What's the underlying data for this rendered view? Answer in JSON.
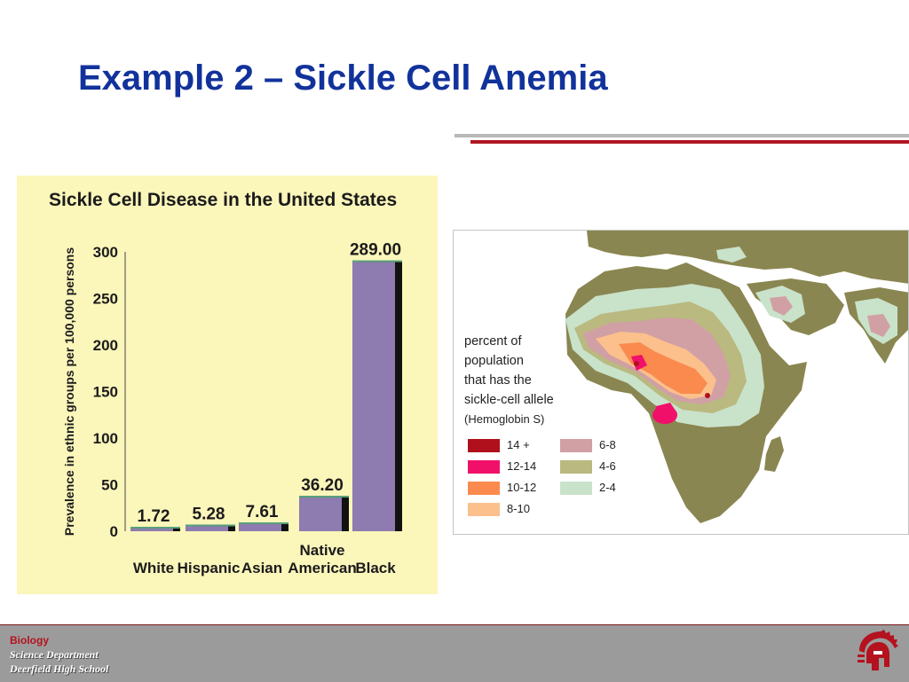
{
  "slide": {
    "title": "Example 2 – Sickle Cell Anemia"
  },
  "colors": {
    "title": "#12329b",
    "rule_gray": "#b8b8b8",
    "rule_red": "#b01722",
    "chart_background": "#fbf6ba",
    "bar_face": "#8e7bb0",
    "bar_shadow": "#111111",
    "footer": "#9b9b9b"
  },
  "chart_data": {
    "type": "bar",
    "title": "Sickle Cell Disease in the United States",
    "ylabel": "Prevalence in ethnic groups per 100,000 persons",
    "xlabel": "",
    "categories": [
      "White",
      "Hispanic",
      "Asian",
      "Native American",
      "Black"
    ],
    "category_lines": [
      [
        "White"
      ],
      [
        "Hispanic"
      ],
      [
        "Asian"
      ],
      [
        "Native",
        "American"
      ],
      [
        "Black"
      ]
    ],
    "values": [
      1.72,
      5.28,
      7.61,
      36.2,
      289.0
    ],
    "value_labels": [
      "1.72",
      "5.28",
      "7.61",
      "36.20",
      "289.00"
    ],
    "ylim": [
      0,
      300
    ],
    "yticks": [
      "0",
      "50",
      "100",
      "150",
      "200",
      "250",
      "300"
    ],
    "grid": false,
    "legend": "none"
  },
  "map": {
    "caption_lines": [
      "percent of",
      "population",
      "that has the",
      "sickle-cell allele",
      "(Hemoglobin S)"
    ],
    "legend": [
      {
        "label": "14 +",
        "color": "#b0101c"
      },
      {
        "label": "12-14",
        "color": "#f0106a"
      },
      {
        "label": "10-12",
        "color": "#fa8a4e"
      },
      {
        "label": "8-10",
        "color": "#fcc08c"
      },
      {
        "label": "6-8",
        "color": "#d1a0a4"
      },
      {
        "label": "4-6",
        "color": "#b9b980"
      },
      {
        "label": "2-4",
        "color": "#c9e2ca"
      }
    ],
    "land_color": "#8a8651"
  },
  "footer": {
    "subject": "Biology",
    "department": "Science Department",
    "school": "Deerfield High School"
  },
  "icons": {
    "logo": "spartan-helmet-icon"
  }
}
